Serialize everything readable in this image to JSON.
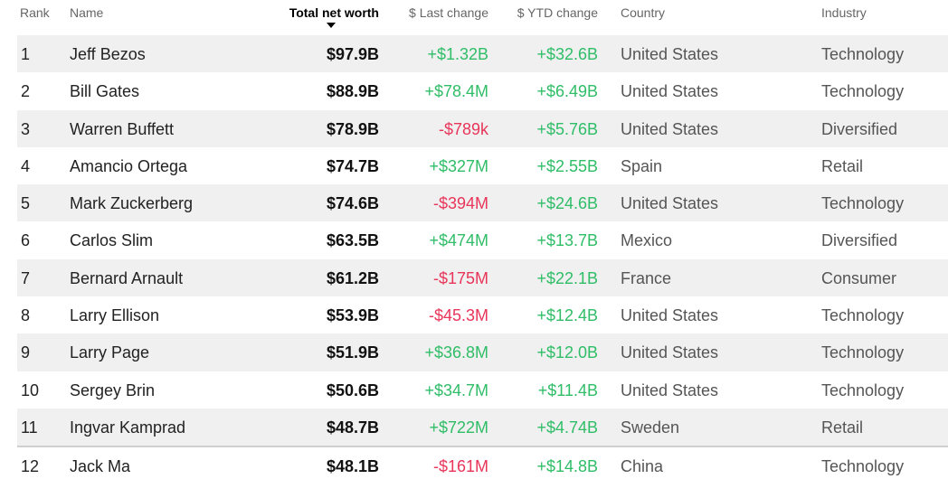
{
  "colors": {
    "positive": "#2fbd67",
    "negative": "#e8355a",
    "row_shade": "#f0f0f0"
  },
  "header": {
    "rank": "Rank",
    "name": "Name",
    "total_net_worth": "Total net worth",
    "last_change": "$ Last change",
    "ytd_change": "$ YTD change",
    "country": "Country",
    "industry": "Industry",
    "sort_icon": "sort-descending-icon"
  },
  "rows": [
    {
      "rank": "1",
      "name": "Jeff Bezos",
      "net_worth": "$97.9B",
      "last_change": "+$1.32B",
      "ytd_change": "+$32.6B",
      "country": "United States",
      "industry": "Technology"
    },
    {
      "rank": "2",
      "name": "Bill Gates",
      "net_worth": "$88.9B",
      "last_change": "+$78.4M",
      "ytd_change": "+$6.49B",
      "country": "United States",
      "industry": "Technology"
    },
    {
      "rank": "3",
      "name": "Warren Buffett",
      "net_worth": "$78.9B",
      "last_change": "-$789k",
      "ytd_change": "+$5.76B",
      "country": "United States",
      "industry": "Diversified"
    },
    {
      "rank": "4",
      "name": "Amancio Ortega",
      "net_worth": "$74.7B",
      "last_change": "+$327M",
      "ytd_change": "+$2.55B",
      "country": "Spain",
      "industry": "Retail"
    },
    {
      "rank": "5",
      "name": "Mark Zuckerberg",
      "net_worth": "$74.6B",
      "last_change": "-$394M",
      "ytd_change": "+$24.6B",
      "country": "United States",
      "industry": "Technology"
    },
    {
      "rank": "6",
      "name": "Carlos Slim",
      "net_worth": "$63.5B",
      "last_change": "+$474M",
      "ytd_change": "+$13.7B",
      "country": "Mexico",
      "industry": "Diversified"
    },
    {
      "rank": "7",
      "name": "Bernard Arnault",
      "net_worth": "$61.2B",
      "last_change": "-$175M",
      "ytd_change": "+$22.1B",
      "country": "France",
      "industry": "Consumer"
    },
    {
      "rank": "8",
      "name": "Larry Ellison",
      "net_worth": "$53.9B",
      "last_change": "-$45.3M",
      "ytd_change": "+$12.4B",
      "country": "United States",
      "industry": "Technology"
    },
    {
      "rank": "9",
      "name": "Larry Page",
      "net_worth": "$51.9B",
      "last_change": "+$36.8M",
      "ytd_change": "+$12.0B",
      "country": "United States",
      "industry": "Technology"
    },
    {
      "rank": "10",
      "name": "Sergey Brin",
      "net_worth": "$50.6B",
      "last_change": "+$34.7M",
      "ytd_change": "+$11.4B",
      "country": "United States",
      "industry": "Technology"
    },
    {
      "rank": "11",
      "name": "Ingvar Kamprad",
      "net_worth": "$48.7B",
      "last_change": "+$722M",
      "ytd_change": "+$4.74B",
      "country": "Sweden",
      "industry": "Retail"
    },
    {
      "rank": "12",
      "name": "Jack Ma",
      "net_worth": "$48.1B",
      "last_change": "-$161M",
      "ytd_change": "+$14.8B",
      "country": "China",
      "industry": "Technology"
    }
  ]
}
